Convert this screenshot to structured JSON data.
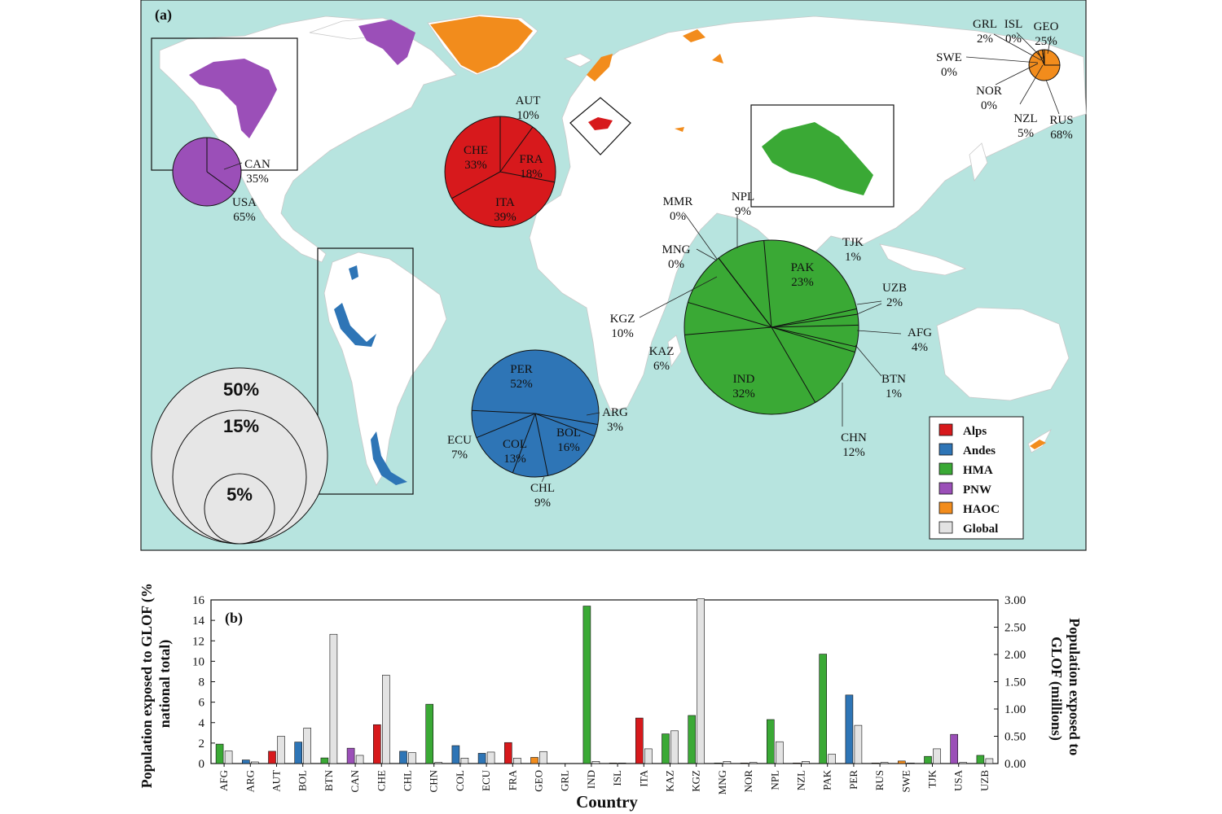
{
  "panel_a": {
    "label": "(a)",
    "legend": [
      {
        "name": "Alps",
        "color": "#d7191c"
      },
      {
        "name": "Andes",
        "color": "#2e75b6"
      },
      {
        "name": "HMA",
        "color": "#3aa935"
      },
      {
        "name": "PNW",
        "color": "#9b4fb8"
      },
      {
        "name": "HAOC",
        "color": "#f28c1c"
      },
      {
        "name": "Global",
        "color": "#e3e3e3"
      }
    ],
    "scale_circles": [
      "50%",
      "15%",
      "5%"
    ]
  },
  "chart_data": [
    {
      "type": "pie",
      "region": "PNW",
      "color": "#9b4fb8",
      "slices": [
        {
          "label": "CAN",
          "pct_text": "35%",
          "value": 35
        },
        {
          "label": "USA",
          "pct_text": "65%",
          "value": 65
        }
      ]
    },
    {
      "type": "pie",
      "region": "Alps",
      "color": "#d7191c",
      "slices": [
        {
          "label": "AUT",
          "pct_text": "10%",
          "value": 10
        },
        {
          "label": "FRA",
          "pct_text": "18%",
          "value": 18
        },
        {
          "label": "ITA",
          "pct_text": "39%",
          "value": 39
        },
        {
          "label": "CHE",
          "pct_text": "33%",
          "value": 33
        }
      ]
    },
    {
      "type": "pie",
      "region": "HAOC",
      "color": "#f28c1c",
      "slices": [
        {
          "label": "GEO",
          "pct_text": "25%",
          "value": 25
        },
        {
          "label": "RUS",
          "pct_text": "68%",
          "value": 68
        },
        {
          "label": "NZL",
          "pct_text": "5%",
          "value": 5
        },
        {
          "label": "NOR",
          "pct_text": "0%",
          "value": 0
        },
        {
          "label": "SWE",
          "pct_text": "0%",
          "value": 0
        },
        {
          "label": "GRL",
          "pct_text": "2%",
          "value": 2
        },
        {
          "label": "ISL",
          "pct_text": "0%",
          "value": 0
        }
      ]
    },
    {
      "type": "pie",
      "region": "Andes",
      "color": "#2e75b6",
      "slices": [
        {
          "label": "ARG",
          "pct_text": "3%",
          "value": 3
        },
        {
          "label": "BOL",
          "pct_text": "16%",
          "value": 16
        },
        {
          "label": "CHL",
          "pct_text": "9%",
          "value": 9
        },
        {
          "label": "COL",
          "pct_text": "13%",
          "value": 13
        },
        {
          "label": "ECU",
          "pct_text": "7%",
          "value": 7
        },
        {
          "label": "PER",
          "pct_text": "52%",
          "value": 52
        }
      ]
    },
    {
      "type": "pie",
      "region": "HMA",
      "color": "#3aa935",
      "slices": [
        {
          "label": "PAK",
          "pct_text": "23%",
          "value": 23
        },
        {
          "label": "TJK",
          "pct_text": "1%",
          "value": 1
        },
        {
          "label": "UZB",
          "pct_text": "2%",
          "value": 2
        },
        {
          "label": "AFG",
          "pct_text": "4%",
          "value": 4
        },
        {
          "label": "BTN",
          "pct_text": "1%",
          "value": 1
        },
        {
          "label": "CHN",
          "pct_text": "12%",
          "value": 12
        },
        {
          "label": "IND",
          "pct_text": "32%",
          "value": 32
        },
        {
          "label": "KAZ",
          "pct_text": "6%",
          "value": 6
        },
        {
          "label": "KGZ",
          "pct_text": "10%",
          "value": 10
        },
        {
          "label": "MNG",
          "pct_text": "0%",
          "value": 0
        },
        {
          "label": "MMR",
          "pct_text": "0%",
          "value": 0
        },
        {
          "label": "NPL",
          "pct_text": "9%",
          "value": 9
        }
      ]
    },
    {
      "type": "bar",
      "panel_label": "(b)",
      "xlabel": "Country",
      "ylabel": "Population exposed to GLOF (% national total)",
      "ylabel_right": "Population exposed to GLOF (millions)",
      "ylim": [
        0,
        16
      ],
      "yticks": [
        0,
        2,
        4,
        6,
        8,
        10,
        12,
        14,
        16
      ],
      "ylim_right": [
        0,
        3.0
      ],
      "yticks_right": [
        "0.00",
        "0.50",
        "1.00",
        "1.50",
        "2.00",
        "2.50",
        "3.00"
      ],
      "categories": [
        "AFG",
        "ARG",
        "AUT",
        "BOL",
        "BTN",
        "CAN",
        "CHE",
        "CHL",
        "CHN",
        "COL",
        "ECU",
        "FRA",
        "GEO",
        "GRL",
        "IND",
        "ISL",
        "ITA",
        "KAZ",
        "KGZ",
        "MNG",
        "NOR",
        "NPL",
        "NZL",
        "PAK",
        "PER",
        "RUS",
        "SWE",
        "TJK",
        "USA",
        "UZB"
      ],
      "series": [
        {
          "axis": "left",
          "regions": [
            "HMA",
            "Andes",
            "Alps",
            "Andes",
            "HMA",
            "PNW",
            "Alps",
            "Andes",
            "HMA",
            "Andes",
            "Andes",
            "Alps",
            "HAOC",
            "HAOC",
            "HMA",
            "HAOC",
            "Alps",
            "HMA",
            "HMA",
            "HMA",
            "HAOC",
            "HMA",
            "HAOC",
            "HMA",
            "Andes",
            "HAOC",
            "HAOC",
            "HMA",
            "PNW",
            "HMA"
          ],
          "values": [
            1.9,
            0.35,
            1.2,
            2.1,
            0.55,
            1.5,
            3.8,
            1.2,
            5.8,
            1.75,
            1.0,
            2.05,
            0.6,
            0.0,
            15.4,
            0.05,
            4.45,
            2.9,
            4.7,
            0.05,
            0.05,
            4.3,
            0.05,
            10.7,
            6.7,
            0.05,
            0.25,
            0.7,
            2.85,
            0.8
          ]
        },
        {
          "axis": "right",
          "region": "Global",
          "values": [
            0.23,
            0.03,
            0.5,
            0.65,
            2.37,
            0.15,
            1.62,
            0.2,
            0.02,
            0.1,
            0.21,
            0.1,
            0.22,
            0.0,
            0.04,
            0.01,
            0.27,
            0.6,
            3.02,
            0.04,
            0.02,
            0.4,
            0.04,
            0.17,
            0.7,
            0.02,
            0.01,
            0.27,
            0.02,
            0.09
          ]
        }
      ]
    }
  ]
}
